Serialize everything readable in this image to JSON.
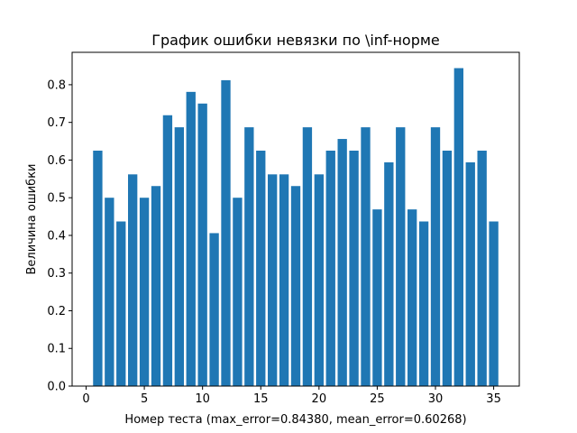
{
  "chart_data": {
    "type": "bar",
    "title": "График ошибки невязки по \\inf-норме",
    "xlabel": "Номер теста (max_error=0.84380, mean_error=0.60268)",
    "ylabel": "Величина ошибки",
    "x": [
      1,
      2,
      3,
      4,
      5,
      6,
      7,
      8,
      9,
      10,
      11,
      12,
      13,
      14,
      15,
      16,
      17,
      18,
      19,
      20,
      21,
      22,
      23,
      24,
      25,
      26,
      27,
      28,
      29,
      30,
      31,
      32,
      33,
      34,
      35
    ],
    "values": [
      0.625,
      0.5,
      0.437,
      0.562,
      0.5,
      0.531,
      0.719,
      0.687,
      0.781,
      0.75,
      0.406,
      0.812,
      0.5,
      0.687,
      0.625,
      0.562,
      0.562,
      0.531,
      0.687,
      0.562,
      0.625,
      0.656,
      0.625,
      0.687,
      0.469,
      0.594,
      0.687,
      0.469,
      0.437,
      0.687,
      0.625,
      0.844,
      0.594,
      0.625,
      0.437
    ],
    "xlim": [
      -1.2,
      37.2
    ],
    "ylim": [
      0,
      0.886
    ],
    "xticks": [
      0,
      5,
      10,
      15,
      20,
      25,
      30,
      35
    ],
    "yticks": [
      0.0,
      0.1,
      0.2,
      0.3,
      0.4,
      0.5,
      0.6,
      0.7,
      0.8
    ],
    "xtick_labels": [
      "0",
      "5",
      "10",
      "15",
      "20",
      "25",
      "30",
      "35"
    ],
    "ytick_labels": [
      "0.0",
      "0.1",
      "0.2",
      "0.3",
      "0.4",
      "0.5",
      "0.6",
      "0.7",
      "0.8"
    ],
    "bar_color": "#1f77b4",
    "grid": false,
    "legend": false
  }
}
